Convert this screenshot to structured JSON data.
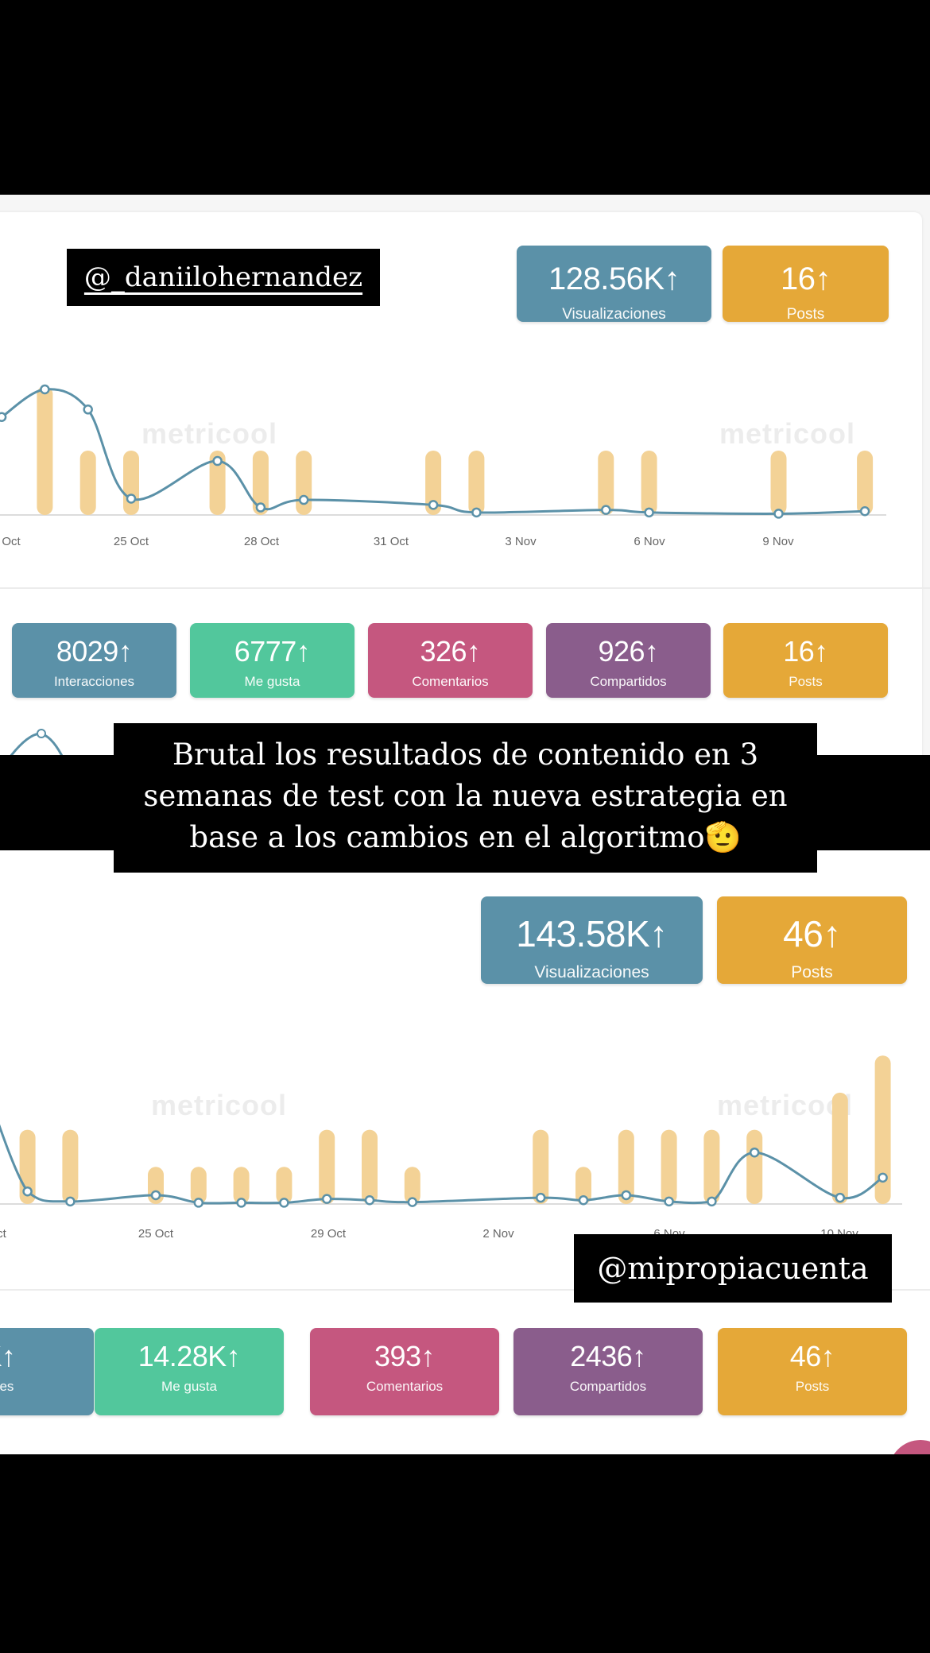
{
  "colors": {
    "views": "#5b91a8",
    "likes": "#52c79c",
    "comments": "#c5577f",
    "shares": "#8a5d8c",
    "posts": "#e5a838",
    "bar": "#f3d296",
    "line": "#5b91a8"
  },
  "top": {
    "handle": "@_daniilohernandez",
    "watermark": "metricool",
    "cards": [
      {
        "value": "128.56K↑",
        "label": "Visualizaciones",
        "color": "views"
      },
      {
        "value": "16↑",
        "label": "Posts",
        "color": "posts"
      }
    ],
    "stats": [
      {
        "value": "8029↑",
        "label": "Interacciones",
        "color": "views"
      },
      {
        "value": "6777↑",
        "label": "Me gusta",
        "color": "likes"
      },
      {
        "value": "326↑",
        "label": "Comentarios",
        "color": "comments"
      },
      {
        "value": "926↑",
        "label": "Compartidos",
        "color": "shares"
      },
      {
        "value": "16↑",
        "label": "Posts",
        "color": "posts"
      }
    ]
  },
  "caption": {
    "lines": [
      "Brutal los resultados de contenido en 3",
      "semanas de test con la nueva estrategia en",
      "base a los cambios en el algoritmo🫡"
    ]
  },
  "bottom": {
    "handle": "@mipropiacuenta",
    "watermark": "metricool",
    "cards": [
      {
        "value": "143.58K↑",
        "label": "Visualizaciones",
        "color": "views"
      },
      {
        "value": "46↑",
        "label": "Posts",
        "color": "posts"
      }
    ],
    "stats": [
      {
        "value": "K↑",
        "label": "ones",
        "color": "views"
      },
      {
        "value": "14.28K↑",
        "label": "Me gusta",
        "color": "likes"
      },
      {
        "value": "393↑",
        "label": "Comentarios",
        "color": "comments"
      },
      {
        "value": "2436↑",
        "label": "Compartidos",
        "color": "shares"
      },
      {
        "value": "46↑",
        "label": "Posts",
        "color": "posts"
      }
    ]
  },
  "chart_data": [
    {
      "type": "bar+line",
      "x_tick_labels": [
        "Oct",
        "25 Oct",
        "28 Oct",
        "31 Oct",
        "3 Nov",
        "6 Nov",
        "9 Nov"
      ],
      "bars_posts": {
        "dates": [
          "23 Oct",
          "24 Oct",
          "25 Oct",
          "27 Oct",
          "28 Oct",
          "29 Oct",
          "1 Nov",
          "2 Nov",
          "5 Nov",
          "6 Nov",
          "9 Nov",
          "11 Nov"
        ],
        "values": [
          2,
          1,
          1,
          1,
          1,
          1,
          1,
          1,
          1,
          1,
          1,
          1
        ]
      },
      "line_views_relative": {
        "dates": [
          "22 Oct",
          "23 Oct",
          "24 Oct",
          "25 Oct",
          "27 Oct",
          "28 Oct",
          "29 Oct",
          "1 Nov",
          "2 Nov",
          "5 Nov",
          "6 Nov",
          "9 Nov",
          "11 Nov"
        ],
        "values": [
          78,
          100,
          84,
          13,
          43,
          6,
          12,
          8,
          2,
          4,
          2,
          1,
          3
        ]
      },
      "grid": false
    },
    {
      "type": "bar+line",
      "x_tick_labels": [
        "ct",
        "25 Oct",
        "29 Oct",
        "2 Nov",
        "6 Nov",
        "10 Nov"
      ],
      "bars_posts": {
        "dates": [
          "22 Oct",
          "23 Oct",
          "25 Oct",
          "26 Oct",
          "27 Oct",
          "28 Oct",
          "29 Oct",
          "30 Oct",
          "31 Oct",
          "3 Nov",
          "4 Nov",
          "5 Nov",
          "6 Nov",
          "7 Nov",
          "8 Nov",
          "10 Nov",
          "11 Nov"
        ],
        "values": [
          2,
          2,
          1,
          1,
          1,
          1,
          2,
          2,
          1,
          2,
          1,
          2,
          2,
          2,
          2,
          3,
          4
        ]
      },
      "line_views_relative": {
        "dates": [
          "21 Oct",
          "22 Oct",
          "23 Oct",
          "25 Oct",
          "26 Oct",
          "27 Oct",
          "28 Oct",
          "29 Oct",
          "30 Oct",
          "31 Oct",
          "3 Nov",
          "4 Nov",
          "5 Nov",
          "6 Nov",
          "7 Nov",
          "8 Nov",
          "10 Nov",
          "11 Nov"
        ],
        "values": [
          95,
          10,
          2,
          7,
          1,
          1,
          1,
          4,
          3,
          1.5,
          5,
          3,
          7,
          2,
          2,
          41,
          5,
          21
        ]
      },
      "grid": false
    }
  ]
}
